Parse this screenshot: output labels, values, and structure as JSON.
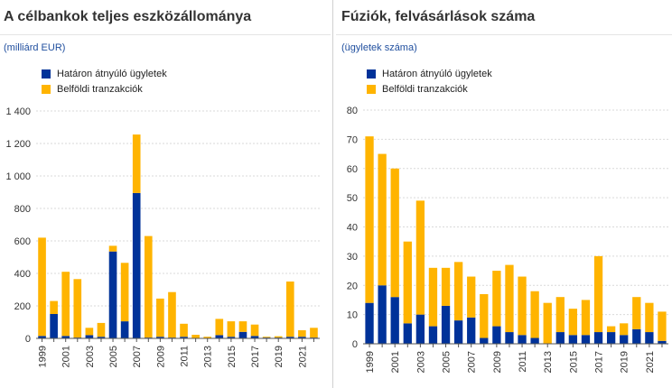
{
  "colors": {
    "cross_border": "#003299",
    "domestic": "#ffb400"
  },
  "chart_data": [
    {
      "type": "bar",
      "stacked": true,
      "title": "A célbankok teljes eszközállománya",
      "subtitle": "(milliárd EUR)",
      "legend": [
        "Határon átnyúló ügyletek",
        "Belföldi tranzakciók"
      ],
      "ylim": [
        0,
        1400
      ],
      "yticks": [
        0,
        200,
        400,
        600,
        800,
        1000,
        1200,
        1400
      ],
      "ytick_labels": [
        "0",
        "200",
        "400",
        "600",
        "800",
        "1 000",
        "1 200",
        "1 400"
      ],
      "categories": [
        "1999",
        "2000",
        "2001",
        "2002",
        "2003",
        "2004",
        "2005",
        "2006",
        "2007",
        "2008",
        "2009",
        "2010",
        "2011",
        "2012",
        "2013",
        "2014",
        "2015",
        "2016",
        "2017",
        "2018",
        "2019",
        "2020",
        "2021",
        "2022"
      ],
      "xtick_labels": [
        "1999",
        "2001",
        "2003",
        "2005",
        "2007",
        "2009",
        "2011",
        "2013",
        "2015",
        "2017",
        "2019",
        "2021"
      ],
      "series": [
        {
          "name": "Határon átnyúló ügyletek",
          "values": [
            15,
            150,
            15,
            5,
            20,
            10,
            535,
            105,
            895,
            5,
            10,
            5,
            10,
            2,
            2,
            20,
            10,
            40,
            15,
            5,
            5,
            10,
            10,
            5
          ]
        },
        {
          "name": "Belföldi tranzakciók",
          "values": [
            605,
            80,
            395,
            360,
            45,
            85,
            35,
            360,
            360,
            625,
            235,
            280,
            80,
            20,
            8,
            100,
            95,
            65,
            70,
            5,
            8,
            340,
            40,
            60
          ]
        }
      ]
    },
    {
      "type": "bar",
      "stacked": true,
      "title": "Fúziók, felvásárlások száma",
      "subtitle": "(ügyletek száma)",
      "legend": [
        "Határon átnyúló ügyletek",
        "Belföldi tranzakciók"
      ],
      "ylim": [
        0,
        80
      ],
      "yticks": [
        0,
        10,
        20,
        30,
        40,
        50,
        60,
        70,
        80
      ],
      "ytick_labels": [
        "0",
        "10",
        "20",
        "30",
        "40",
        "50",
        "60",
        "70",
        "80"
      ],
      "categories": [
        "1999",
        "2000",
        "2001",
        "2002",
        "2003",
        "2004",
        "2005",
        "2006",
        "2007",
        "2008",
        "2009",
        "2010",
        "2011",
        "2012",
        "2013",
        "2014",
        "2015",
        "2016",
        "2017",
        "2018",
        "2019",
        "2020",
        "2021",
        "2022"
      ],
      "xtick_labels": [
        "1999",
        "2001",
        "2003",
        "2005",
        "2007",
        "2009",
        "2011",
        "2013",
        "2015",
        "2017",
        "2019",
        "2021"
      ],
      "series": [
        {
          "name": "Határon átnyúló ügyletek",
          "values": [
            14,
            20,
            16,
            7,
            10,
            6,
            13,
            8,
            9,
            2,
            6,
            4,
            3,
            2,
            0,
            4,
            3,
            3,
            4,
            4,
            3,
            5,
            4,
            1
          ]
        },
        {
          "name": "Belföldi tranzakciók",
          "values": [
            57,
            45,
            44,
            28,
            39,
            20,
            13,
            20,
            14,
            15,
            19,
            23,
            20,
            16,
            14,
            12,
            9,
            12,
            26,
            2,
            4,
            11,
            10,
            10
          ]
        }
      ]
    }
  ]
}
